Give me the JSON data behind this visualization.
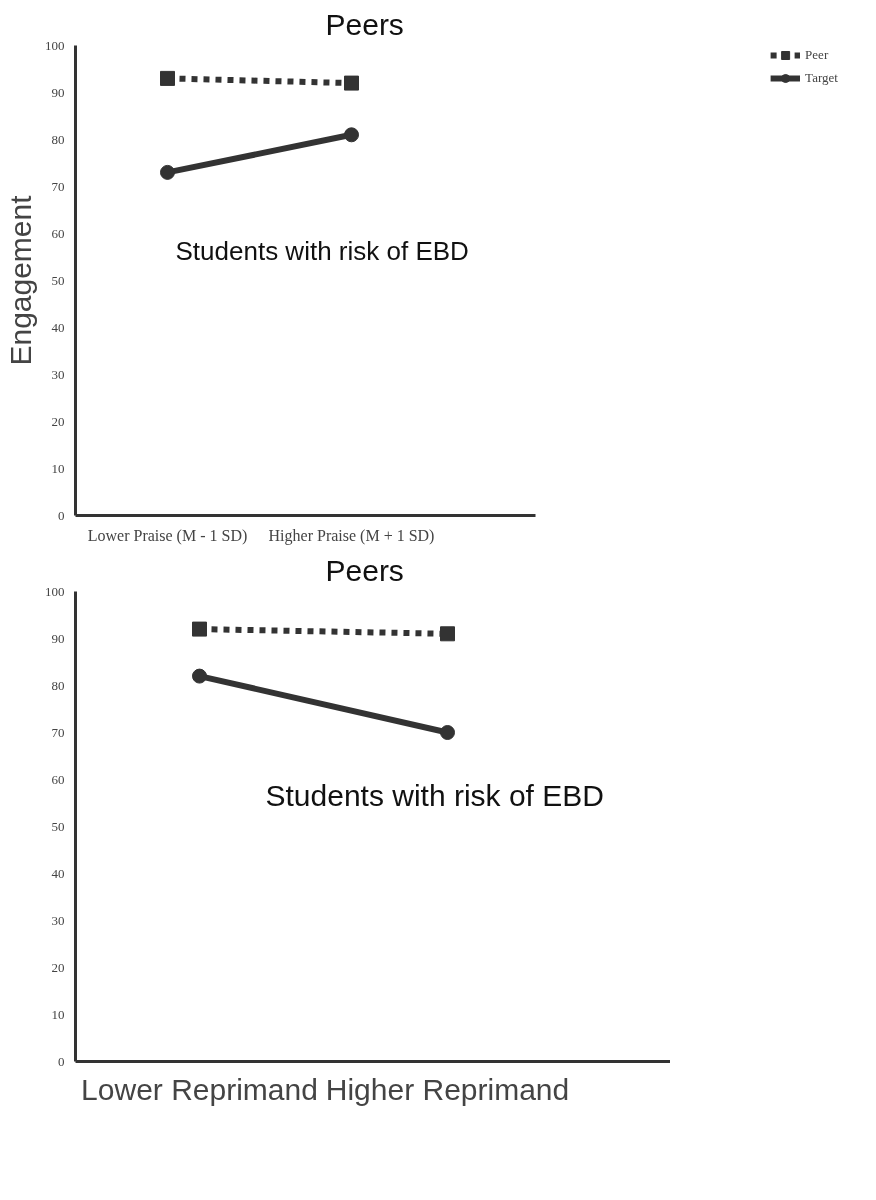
{
  "chart_data": [
    {
      "type": "line",
      "ylabel": "Engagement",
      "categories": [
        "Lower Praise (M - 1 SD)",
        "Higher Praise (M + 1 SD)"
      ],
      "series": [
        {
          "name": "Peer",
          "color": "#333333",
          "values": [
            93,
            92
          ],
          "line_style": "dashed",
          "marker": "square"
        },
        {
          "name": "Target",
          "color": "#333333",
          "values": [
            73,
            81
          ],
          "line_style": "solid",
          "marker": "circle"
        }
      ],
      "ylim": [
        0,
        100
      ],
      "yticks": [
        0,
        10,
        20,
        30,
        40,
        50,
        60,
        70,
        80,
        90,
        100
      ],
      "grid": false,
      "legend": "top right",
      "annotations": [
        "Peers",
        "Students with risk of EBD"
      ]
    },
    {
      "type": "line",
      "categories": [
        "Lower Reprimand",
        "Higher Reprimand"
      ],
      "series": [
        {
          "color": "#333333",
          "values": [
            92,
            91
          ],
          "line_style": "dashed",
          "marker": "square"
        },
        {
          "color": "#333333",
          "values": [
            82,
            70
          ],
          "line_style": "solid",
          "marker": "circle"
        }
      ],
      "ylim": [
        0,
        100
      ],
      "yticks": [
        0,
        10,
        20,
        30,
        40,
        50,
        60,
        70,
        80,
        90,
        100
      ],
      "grid": false,
      "annotations": [
        "Peers",
        "Students with risk of EBD"
      ]
    }
  ]
}
